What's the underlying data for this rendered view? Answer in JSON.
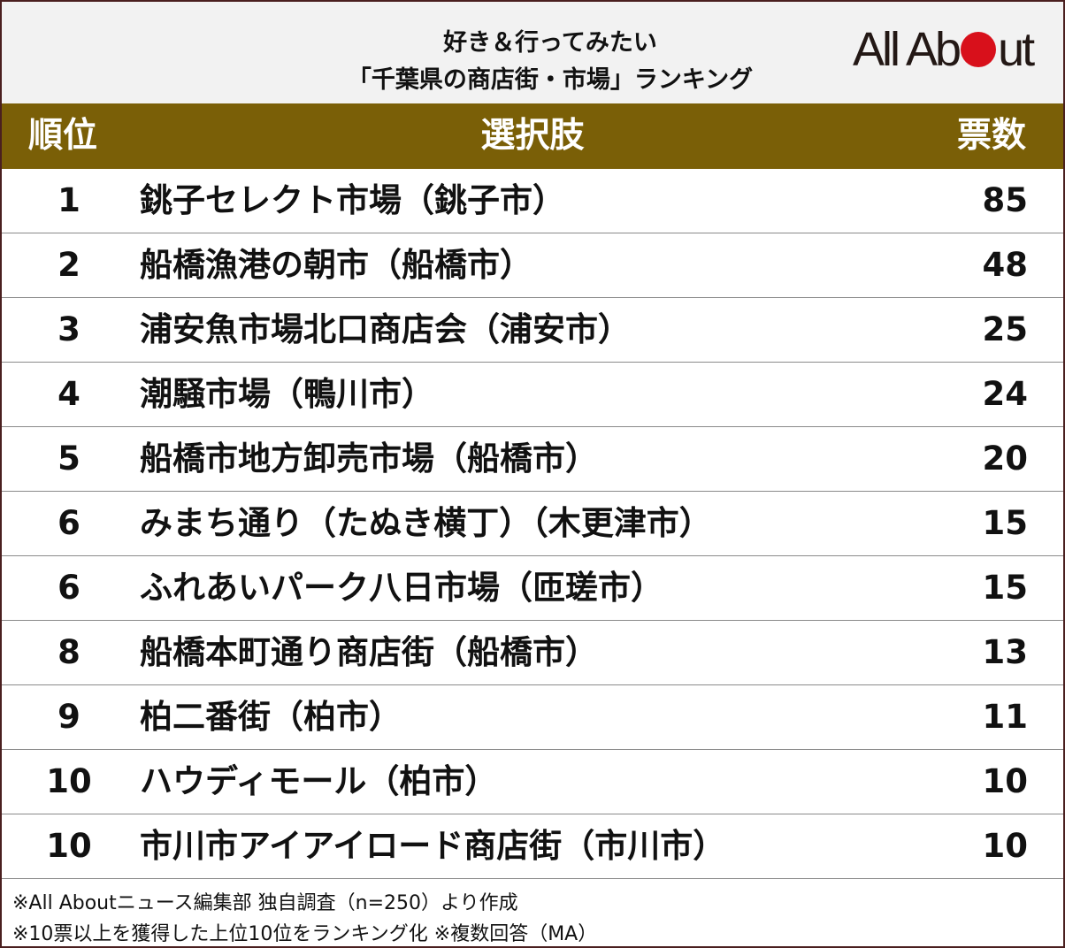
{
  "title": {
    "line1": "好き＆行ってみたい",
    "line2": "「千葉県の商店街・市場」ランキング"
  },
  "logo": {
    "text_before": "All Ab",
    "text_after": "ut"
  },
  "colors": {
    "header_bg": "#7a5f07",
    "title_bg": "#f2f2f2",
    "logo_dot": "#d8101b",
    "frame": "#4a1f1f"
  },
  "chart_data": {
    "type": "table",
    "columns": [
      "順位",
      "選択肢",
      "票数"
    ],
    "rows": [
      {
        "rank": "1",
        "name": "銚子セレクト市場（銚子市）",
        "votes": "85"
      },
      {
        "rank": "2",
        "name": "船橋漁港の朝市（船橋市）",
        "votes": "48"
      },
      {
        "rank": "3",
        "name": "浦安魚市場北口商店会（浦安市）",
        "votes": "25"
      },
      {
        "rank": "4",
        "name": "潮騒市場（鴨川市）",
        "votes": "24"
      },
      {
        "rank": "5",
        "name": "船橋市地方卸売市場（船橋市）",
        "votes": "20"
      },
      {
        "rank": "6",
        "name": "みまち通り（たぬき横丁）（木更津市）",
        "votes": "15"
      },
      {
        "rank": "6",
        "name": "ふれあいパーク八日市場（匝瑳市）",
        "votes": "15"
      },
      {
        "rank": "8",
        "name": "船橋本町通り商店街（船橋市）",
        "votes": "13"
      },
      {
        "rank": "9",
        "name": "柏二番街（柏市）",
        "votes": "11"
      },
      {
        "rank": "10",
        "name": "ハウディモール（柏市）",
        "votes": "10"
      },
      {
        "rank": "10",
        "name": "市川市アイアイロード商店街（市川市）",
        "votes": "10"
      }
    ]
  },
  "footnotes": [
    "※All Aboutニュース編集部 独自調査（n=250）より作成",
    "※10票以上を獲得した上位10位をランキング化 ※複数回答（MA）"
  ]
}
